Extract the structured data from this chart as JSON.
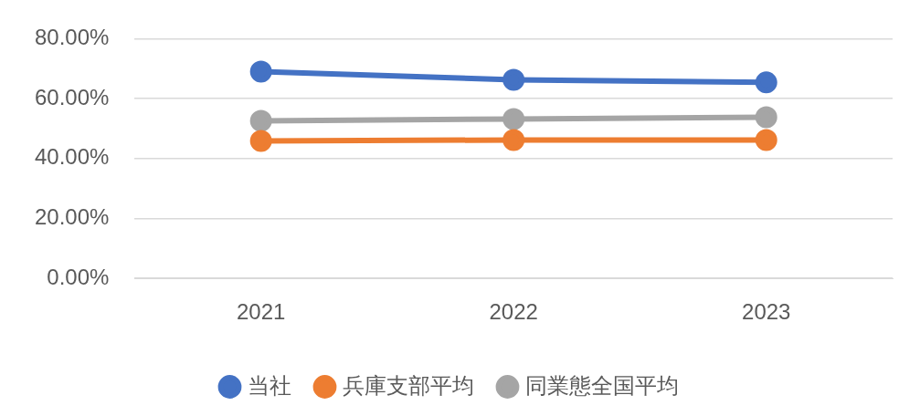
{
  "chart_data": {
    "type": "line",
    "categories": [
      "2021",
      "2022",
      "2023"
    ],
    "series": [
      {
        "name": "当社",
        "color": "#4472c4",
        "values": [
          69.0,
          66.3,
          65.4
        ]
      },
      {
        "name": "兵庫支部平均",
        "color": "#ed7d31",
        "values": [
          45.9,
          46.2,
          46.2
        ]
      },
      {
        "name": "同業態全国平均",
        "color": "#a5a5a5",
        "values": [
          52.6,
          53.2,
          53.8
        ]
      }
    ],
    "ylim": [
      0,
      80
    ],
    "yticks": [
      {
        "value": 0,
        "label": "0.00%"
      },
      {
        "value": 20,
        "label": "20.00%"
      },
      {
        "value": 40,
        "label": "40.00%"
      },
      {
        "value": 60,
        "label": "60.00%"
      },
      {
        "value": 80,
        "label": "80.00%"
      }
    ],
    "grid": "y",
    "legend": "bottom",
    "marker": "circle",
    "line_style": "solid"
  }
}
